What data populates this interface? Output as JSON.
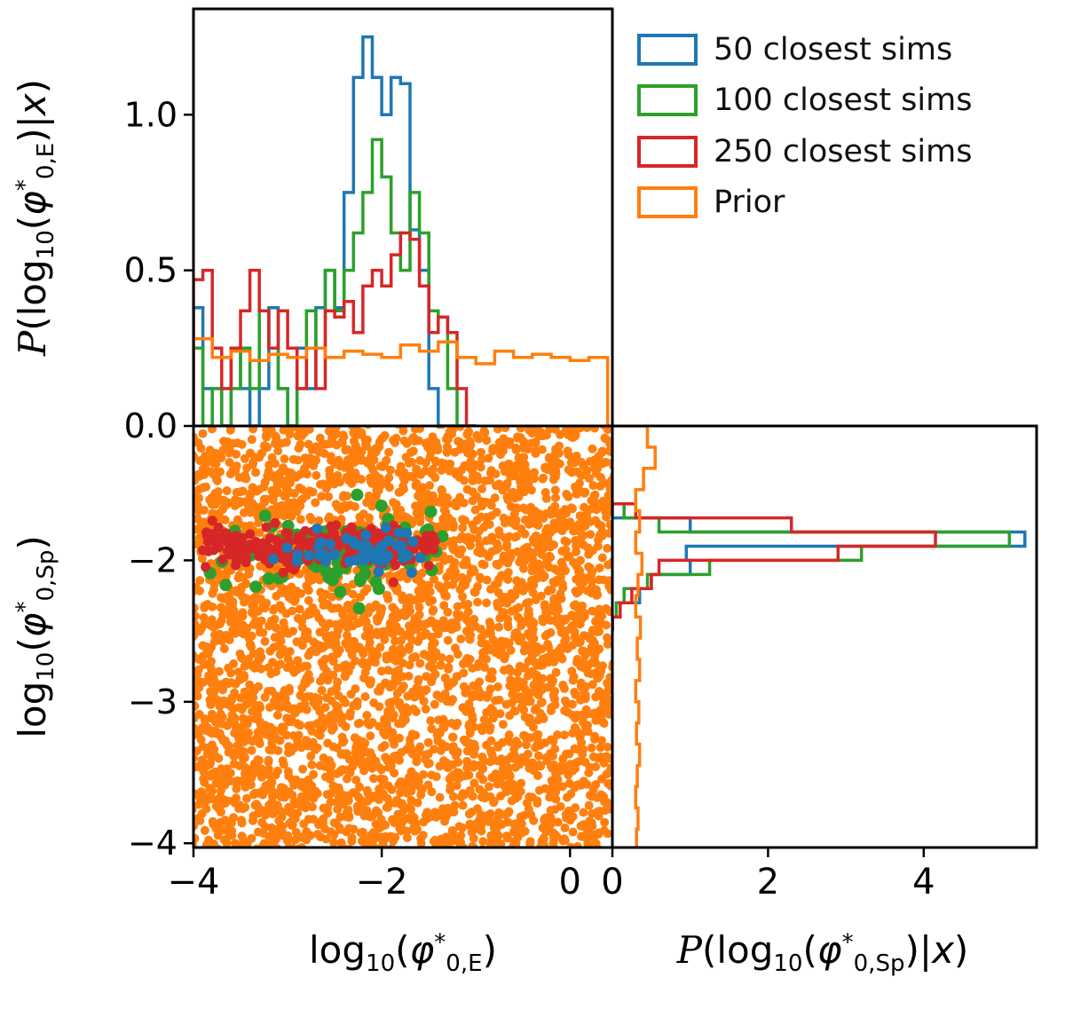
{
  "figure": {
    "background": "#ffffff",
    "legend": {
      "items": [
        {
          "label": "50 closest sims",
          "color": "#1f77b4"
        },
        {
          "label": "100 closest sims",
          "color": "#2ca02c"
        },
        {
          "label": "250 closest sims",
          "color": "#d62728"
        },
        {
          "label": "Prior",
          "color": "#ff7f0e"
        }
      ]
    },
    "labels": {
      "top_y": [
        {
          "t": "P",
          "v": "scr"
        },
        {
          "t": "("
        },
        {
          "t": "log"
        },
        {
          "t": "10",
          "v": "sub"
        },
        {
          "t": "("
        },
        {
          "t": "φ",
          "v": "i"
        },
        {
          "t": "*",
          "v": "sup"
        },
        {
          "t": "0,E",
          "v": "sub"
        },
        {
          "t": ")|"
        },
        {
          "t": "x",
          "v": "i"
        },
        {
          "t": ")"
        }
      ],
      "scatter_y": [
        {
          "t": "log"
        },
        {
          "t": "10",
          "v": "sub"
        },
        {
          "t": "("
        },
        {
          "t": "φ",
          "v": "i"
        },
        {
          "t": "*",
          "v": "sup"
        },
        {
          "t": "0,Sp",
          "v": "sub"
        },
        {
          "t": ")"
        }
      ],
      "bottom_left_x": [
        {
          "t": "log"
        },
        {
          "t": "10",
          "v": "sub"
        },
        {
          "t": "("
        },
        {
          "t": "φ",
          "v": "i"
        },
        {
          "t": "*",
          "v": "sup"
        },
        {
          "t": "0,E",
          "v": "sub"
        },
        {
          "t": ")"
        }
      ],
      "bottom_right_x": [
        {
          "t": "P",
          "v": "scr"
        },
        {
          "t": "("
        },
        {
          "t": "log"
        },
        {
          "t": "10",
          "v": "sub"
        },
        {
          "t": "("
        },
        {
          "t": "φ",
          "v": "i"
        },
        {
          "t": "*",
          "v": "sup"
        },
        {
          "t": "0,Sp",
          "v": "sub"
        },
        {
          "t": ")|"
        },
        {
          "t": "x",
          "v": "i"
        },
        {
          "t": ")"
        }
      ]
    }
  },
  "chart_data": [
    {
      "id": "top_marginal",
      "type": "histogram",
      "orientation": "vertical",
      "xlabel": "log10(phi*_{0,E})",
      "ylabel": "P(log10(phi*_{0,E})|x)",
      "xlim": [
        -4,
        0.45
      ],
      "ylim": [
        0,
        1.34
      ],
      "yticks": {
        "values": [
          0,
          0.5,
          1.0
        ],
        "labels": [
          "0.0",
          "0.5",
          "1.0"
        ]
      },
      "series": [
        {
          "name": "50 closest sims",
          "color": "#1f77b4",
          "bin_start": -4.0,
          "bin_width": 0.1,
          "values": [
            0.38,
            0.12,
            0.12,
            0,
            0.25,
            0.12,
            0,
            0.12,
            0.38,
            0.12,
            0,
            0.25,
            0.12,
            0.38,
            0.5,
            0.38,
            0.75,
            1.12,
            1.25,
            1.12,
            1.0,
            1.12,
            1.1,
            0.63,
            0.5,
            0.12,
            0,
            0,
            0,
            0
          ]
        },
        {
          "name": "100 closest sims",
          "color": "#2ca02c",
          "bin_start": -4.0,
          "bin_width": 0.1,
          "values": [
            0.25,
            0,
            0.12,
            0,
            0.12,
            0.25,
            0.12,
            0.37,
            0.25,
            0.12,
            0,
            0.12,
            0.37,
            0.25,
            0.5,
            0.37,
            0.5,
            0.62,
            0.75,
            0.92,
            0.8,
            0.62,
            0.5,
            0.75,
            0.62,
            0.37,
            0.35,
            0.12,
            0,
            0
          ]
        },
        {
          "name": "250 closest sims",
          "color": "#d62728",
          "bin_start": -4.0,
          "bin_width": 0.1,
          "values": [
            0.47,
            0.5,
            0.25,
            0.12,
            0.25,
            0.37,
            0.5,
            0.37,
            0.25,
            0.37,
            0.25,
            0.12,
            0.25,
            0.12,
            0.37,
            0.35,
            0.4,
            0.3,
            0.45,
            0.5,
            0.45,
            0.55,
            0.62,
            0.6,
            0.45,
            0.3,
            0.35,
            0.3,
            0.12,
            0
          ]
        },
        {
          "name": "Prior",
          "color": "#ff7f0e",
          "bin_start": -4.0,
          "bin_width": 0.2,
          "values": [
            0.28,
            0.22,
            0.24,
            0.21,
            0.23,
            0.22,
            0.25,
            0.22,
            0.24,
            0.23,
            0.22,
            0.26,
            0.24,
            0.27,
            0.22,
            0.2,
            0.24,
            0.22,
            0.23,
            0.22,
            0.21,
            0.22
          ]
        }
      ]
    },
    {
      "id": "joint",
      "type": "scatter",
      "xlabel": "log10(phi*_{0,E})",
      "ylabel": "log10(phi*_{0,Sp})",
      "xlim": [
        -4,
        0.45
      ],
      "ylim": [
        -4.03,
        -1.05
      ],
      "xticks": {
        "values": [
          -4,
          -2,
          0
        ],
        "labels": [
          "−4",
          "−2",
          "0"
        ]
      },
      "yticks": {
        "values": [
          -2,
          -3,
          -4
        ],
        "labels": [
          "−2",
          "−3",
          "−4"
        ]
      },
      "series": [
        {
          "name": "Prior",
          "color": "#ff7f0e",
          "kind": "uniform",
          "n": 3800,
          "x_range": [
            -4.02,
            0.47
          ],
          "y_range": [
            -4.05,
            -1.03
          ],
          "marker_r": 5,
          "seed": 20
        },
        {
          "name": "100 closest sims",
          "color": "#2ca02c",
          "kind": "band",
          "n": 100,
          "x_dist": {
            "mean": -2.35,
            "sd": 0.7,
            "min": -3.9,
            "max": -1.3
          },
          "y_dist": {
            "mean": -1.93,
            "sd": 0.13
          },
          "marker_r": 7,
          "seed": 7
        },
        {
          "name": "250 closest sims",
          "color": "#d62728",
          "kind": "band",
          "n": 250,
          "x_dist": {
            "uniform": [
              -3.92,
              -1.42
            ]
          },
          "y_dist": {
            "mean": -1.9,
            "sd": 0.07
          },
          "marker_r": 5.5,
          "seed": 13
        },
        {
          "name": "50 closest sims",
          "color": "#1f77b4",
          "kind": "band",
          "n": 50,
          "x_dist": {
            "mean": -2.05,
            "sd": 0.5,
            "min": -3.3,
            "max": -1.5
          },
          "y_dist": {
            "mean": -1.95,
            "sd": 0.08
          },
          "marker_r": 6,
          "seed": 99
        }
      ]
    },
    {
      "id": "right_marginal",
      "type": "histogram",
      "orientation": "horizontal",
      "xlabel": "P(log10(phi*_{0,Sp})|x)",
      "ylabel": "log10(phi*_{0,Sp})",
      "xlim": [
        0,
        5.45
      ],
      "ylim": [
        -4.03,
        -1.05
      ],
      "xticks": {
        "values": [
          0,
          2,
          4
        ],
        "labels": [
          "0",
          "2",
          "4"
        ]
      },
      "series": [
        {
          "name": "50 closest sims",
          "color": "#1f77b4",
          "bin_start": -1.6,
          "bin_width": -0.1,
          "values": [
            0,
            1.0,
            5.3,
            0.95,
            1.0,
            0.5,
            0.35,
            0.1,
            0
          ]
        },
        {
          "name": "100 closest sims",
          "color": "#2ca02c",
          "bin_start": -1.6,
          "bin_width": -0.1,
          "values": [
            0.15,
            0.6,
            5.1,
            3.2,
            1.25,
            0.45,
            0.15,
            0.05,
            0
          ]
        },
        {
          "name": "250 closest sims",
          "color": "#d62728",
          "bin_start": -1.6,
          "bin_width": -0.1,
          "values": [
            0.3,
            2.3,
            4.15,
            2.9,
            0.6,
            0.5,
            0.25,
            0.1,
            0
          ]
        },
        {
          "name": "Prior",
          "color": "#ff7f0e",
          "bin_start": -1.05,
          "bin_width": -0.15,
          "values": [
            0.45,
            0.55,
            0.4,
            0.3,
            0.35,
            0.3,
            0.38,
            0.33,
            0.3,
            0.36,
            0.32,
            0.35,
            0.3,
            0.34,
            0.31,
            0.35,
            0.32,
            0.3,
            0.33,
            0.31
          ]
        }
      ]
    }
  ]
}
